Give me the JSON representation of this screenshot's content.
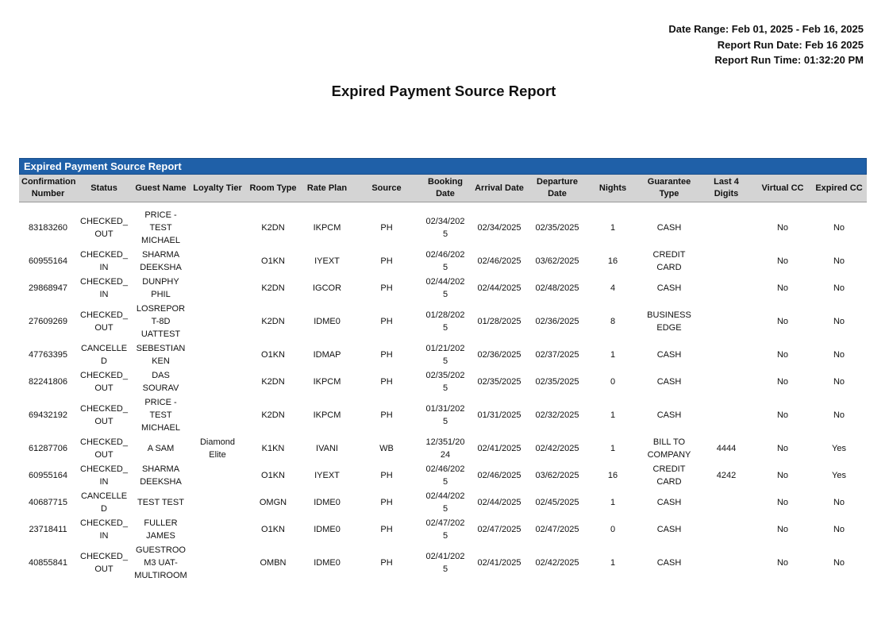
{
  "header": {
    "date_range": "Date Range: Feb 01, 2025 - Feb 16, 2025",
    "run_date": "Report Run Date: Feb 16 2025",
    "run_time": "Report Run Time: 01:32:20 PM",
    "title": "Expired Payment Source Report"
  },
  "table": {
    "band_title": "Expired Payment Source Report",
    "band_color": "#1f60a8",
    "columns": [
      "Confirmation Number",
      "Status",
      "Guest Name",
      "Loyalty Tier",
      "Room Type",
      "Rate Plan",
      "Source",
      "Booking Date",
      "Arrival Date",
      "Departure Date",
      "Nights",
      "Guarantee Type",
      "Last 4 Digits",
      "Virtual CC",
      "Expired CC"
    ],
    "rows": [
      [
        "83183260",
        "CHECKED_OUT",
        "PRICE - TEST MICHAEL",
        "",
        "K2DN",
        "IKPCM",
        "PH",
        "02/34/2025",
        "02/34/2025",
        "02/35/2025",
        "1",
        "CASH",
        "",
        "No",
        "No"
      ],
      [
        "60955164",
        "CHECKED_IN",
        "SHARMA DEEKSHA",
        "",
        "O1KN",
        "IYEXT",
        "PH",
        "02/46/2025",
        "02/46/2025",
        "03/62/2025",
        "16",
        "CREDIT CARD",
        "",
        "No",
        "No"
      ],
      [
        "29868947",
        "CHECKED_IN",
        "DUNPHY PHIL",
        "",
        "K2DN",
        "IGCOR",
        "PH",
        "02/44/2025",
        "02/44/2025",
        "02/48/2025",
        "4",
        "CASH",
        "",
        "No",
        "No"
      ],
      [
        "27609269",
        "CHECKED_OUT",
        "LOSREPORT-8D UATTEST",
        "",
        "K2DN",
        "IDME0",
        "PH",
        "01/28/2025",
        "01/28/2025",
        "02/36/2025",
        "8",
        "BUSINESS EDGE",
        "",
        "No",
        "No"
      ],
      [
        "47763395",
        "CANCELLED",
        "SEBESTIAN KEN",
        "",
        "O1KN",
        "IDMAP",
        "PH",
        "01/21/2025",
        "02/36/2025",
        "02/37/2025",
        "1",
        "CASH",
        "",
        "No",
        "No"
      ],
      [
        "82241806",
        "CHECKED_OUT",
        "DAS SOURAV",
        "",
        "K2DN",
        "IKPCM",
        "PH",
        "02/35/2025",
        "02/35/2025",
        "02/35/2025",
        "0",
        "CASH",
        "",
        "No",
        "No"
      ],
      [
        "69432192",
        "CHECKED_OUT",
        "PRICE - TEST MICHAEL",
        "",
        "K2DN",
        "IKPCM",
        "PH",
        "01/31/2025",
        "01/31/2025",
        "02/32/2025",
        "1",
        "CASH",
        "",
        "No",
        "No"
      ],
      [
        "61287706",
        "CHECKED_OUT",
        "A SAM",
        "Diamond Elite",
        "K1KN",
        "IVANI",
        "WB",
        "12/351/2024",
        "02/41/2025",
        "02/42/2025",
        "1",
        "BILL TO COMPANY",
        "4444",
        "No",
        "Yes"
      ],
      [
        "60955164",
        "CHECKED_IN",
        "SHARMA DEEKSHA",
        "",
        "O1KN",
        "IYEXT",
        "PH",
        "02/46/2025",
        "02/46/2025",
        "03/62/2025",
        "16",
        "CREDIT CARD",
        "4242",
        "No",
        "Yes"
      ],
      [
        "40687715",
        "CANCELLED",
        "TEST TEST",
        "",
        "OMGN",
        "IDME0",
        "PH",
        "02/44/2025",
        "02/44/2025",
        "02/45/2025",
        "1",
        "CASH",
        "",
        "No",
        "No"
      ],
      [
        "23718411",
        "CHECKED_IN",
        "FULLER JAMES",
        "",
        "O1KN",
        "IDME0",
        "PH",
        "02/47/2025",
        "02/47/2025",
        "02/47/2025",
        "0",
        "CASH",
        "",
        "No",
        "No"
      ],
      [
        "40855841",
        "CHECKED_OUT",
        "GUESTROOM3 UAT-MULTIROOM",
        "",
        "OMBN",
        "IDME0",
        "PH",
        "02/41/2025",
        "02/41/2025",
        "02/42/2025",
        "1",
        "CASH",
        "",
        "No",
        "No"
      ]
    ]
  }
}
